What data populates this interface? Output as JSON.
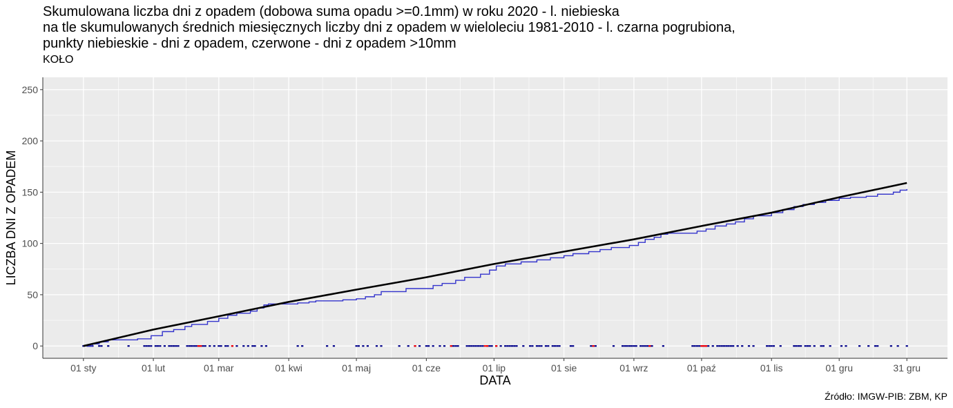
{
  "title_lines": [
    "Skumulowana liczba dni z opadem (dobowa suma opadu >=0.1mm) w roku 2020 - l. niebieska",
    "na tle skumulowanych średnich miesięcznych liczby dni z opadem w wieloleciu 1981-2010 - l. czarna pogrubiona,",
    "punkty niebieskie - dni z opadem, czerwone - dni z opadem >10mm"
  ],
  "subtitle": "KOŁO",
  "caption": "Źródło: IMGW-PIB: ZBM, KP",
  "colors": {
    "panel": "#ebebeb",
    "grid": "#ffffff",
    "series_2020": "#3333cc",
    "series_normal": "#000000",
    "points_rain": "#00008b",
    "points_heavy": "#ff0000"
  },
  "chart_data": {
    "type": "line",
    "xlabel": "DATA",
    "ylabel": "LICZBA DNI Z OPADEM",
    "xlim": [
      "2019-12-14",
      "2021-01-18"
    ],
    "ylim": [
      -12,
      262
    ],
    "grid": true,
    "x_ticks": [
      {
        "date": "2020-01-01",
        "label": "01 sty"
      },
      {
        "date": "2020-02-01",
        "label": "01 lut"
      },
      {
        "date": "2020-03-01",
        "label": "01 mar"
      },
      {
        "date": "2020-04-01",
        "label": "01 kwi"
      },
      {
        "date": "2020-05-01",
        "label": "01 maj"
      },
      {
        "date": "2020-06-01",
        "label": "01 cze"
      },
      {
        "date": "2020-07-01",
        "label": "01 lip"
      },
      {
        "date": "2020-08-01",
        "label": "01 sie"
      },
      {
        "date": "2020-09-01",
        "label": "01 wrz"
      },
      {
        "date": "2020-10-01",
        "label": "01 paź"
      },
      {
        "date": "2020-11-01",
        "label": "01 lis"
      },
      {
        "date": "2020-12-01",
        "label": "01 gru"
      },
      {
        "date": "2020-12-31",
        "label": "31 gru"
      }
    ],
    "y_ticks": [
      {
        "value": 0,
        "label": "0"
      },
      {
        "value": 50,
        "label": "50"
      },
      {
        "value": 100,
        "label": "100"
      },
      {
        "value": 150,
        "label": "150"
      },
      {
        "value": 200,
        "label": "200"
      },
      {
        "value": 250,
        "label": "250"
      }
    ],
    "series": [
      {
        "key": "normal_1981_2010",
        "style": "line-thick",
        "points": [
          [
            "2020-01-01",
            0
          ],
          [
            "2020-02-01",
            16
          ],
          [
            "2020-03-01",
            29
          ],
          [
            "2020-04-01",
            43
          ],
          [
            "2020-05-01",
            55
          ],
          [
            "2020-06-01",
            67
          ],
          [
            "2020-07-01",
            80
          ],
          [
            "2020-08-01",
            92
          ],
          [
            "2020-09-01",
            104
          ],
          [
            "2020-10-01",
            117
          ],
          [
            "2020-11-01",
            130
          ],
          [
            "2020-12-01",
            145
          ],
          [
            "2020-12-31",
            159
          ]
        ]
      },
      {
        "key": "cumulative_2020",
        "style": "step",
        "points": [
          [
            "2020-01-01",
            0
          ],
          [
            "2020-01-05",
            2
          ],
          [
            "2020-01-08",
            4
          ],
          [
            "2020-01-12",
            6
          ],
          [
            "2020-01-25",
            7
          ],
          [
            "2020-01-31",
            10
          ],
          [
            "2020-02-05",
            14
          ],
          [
            "2020-02-10",
            16
          ],
          [
            "2020-02-15",
            19
          ],
          [
            "2020-02-18",
            21
          ],
          [
            "2020-02-25",
            24
          ],
          [
            "2020-03-01",
            27
          ],
          [
            "2020-03-05",
            30
          ],
          [
            "2020-03-09",
            32
          ],
          [
            "2020-03-15",
            34
          ],
          [
            "2020-03-18",
            37
          ],
          [
            "2020-03-21",
            40
          ],
          [
            "2020-03-23",
            41
          ],
          [
            "2020-04-05",
            42
          ],
          [
            "2020-04-10",
            43
          ],
          [
            "2020-04-13",
            44
          ],
          [
            "2020-04-25",
            45
          ],
          [
            "2020-05-01",
            46
          ],
          [
            "2020-05-05",
            48
          ],
          [
            "2020-05-09",
            50
          ],
          [
            "2020-05-12",
            53
          ],
          [
            "2020-05-23",
            56
          ],
          [
            "2020-06-04",
            59
          ],
          [
            "2020-06-08",
            61
          ],
          [
            "2020-06-14",
            64
          ],
          [
            "2020-06-18",
            67
          ],
          [
            "2020-06-25",
            70
          ],
          [
            "2020-06-29",
            74
          ],
          [
            "2020-07-02",
            78
          ],
          [
            "2020-07-06",
            80
          ],
          [
            "2020-07-13",
            82
          ],
          [
            "2020-07-20",
            84
          ],
          [
            "2020-07-26",
            86
          ],
          [
            "2020-08-01",
            88
          ],
          [
            "2020-08-05",
            90
          ],
          [
            "2020-08-12",
            92
          ],
          [
            "2020-08-17",
            94
          ],
          [
            "2020-08-22",
            96
          ],
          [
            "2020-08-30",
            98
          ],
          [
            "2020-09-03",
            101
          ],
          [
            "2020-09-06",
            104
          ],
          [
            "2020-09-10",
            106
          ],
          [
            "2020-09-13",
            109
          ],
          [
            "2020-09-16",
            110
          ],
          [
            "2020-09-29",
            112
          ],
          [
            "2020-10-03",
            114
          ],
          [
            "2020-10-07",
            117
          ],
          [
            "2020-10-12",
            119
          ],
          [
            "2020-10-16",
            121
          ],
          [
            "2020-10-20",
            124
          ],
          [
            "2020-10-24",
            127
          ],
          [
            "2020-11-01",
            130
          ],
          [
            "2020-11-06",
            133
          ],
          [
            "2020-11-11",
            136
          ],
          [
            "2020-11-15",
            138
          ],
          [
            "2020-11-20",
            140
          ],
          [
            "2020-11-25",
            142
          ],
          [
            "2020-12-01",
            144
          ],
          [
            "2020-12-06",
            145
          ],
          [
            "2020-12-13",
            146
          ],
          [
            "2020-12-18",
            148
          ],
          [
            "2020-12-25",
            150
          ],
          [
            "2020-12-28",
            152
          ],
          [
            "2020-12-31",
            153
          ]
        ]
      }
    ],
    "rain_days": [
      "2020-01-01",
      "2020-01-03",
      "2020-01-04",
      "2020-01-05",
      "2020-01-08",
      "2020-01-09",
      "2020-01-12",
      "2020-01-21",
      "2020-01-28",
      "2020-01-29",
      "2020-01-30",
      "2020-01-31",
      "2020-02-02",
      "2020-02-03",
      "2020-02-04",
      "2020-02-06",
      "2020-02-08",
      "2020-02-09",
      "2020-02-10",
      "2020-02-11",
      "2020-02-12",
      "2020-02-16",
      "2020-02-17",
      "2020-02-18",
      "2020-02-19",
      "2020-02-20",
      "2020-02-21",
      "2020-02-22",
      "2020-02-23",
      "2020-02-24",
      "2020-02-26",
      "2020-02-28",
      "2020-03-01",
      "2020-03-02",
      "2020-03-04",
      "2020-03-05",
      "2020-03-07",
      "2020-03-09",
      "2020-03-12",
      "2020-03-14",
      "2020-03-16",
      "2020-03-17",
      "2020-03-20",
      "2020-03-22",
      "2020-04-05",
      "2020-04-07",
      "2020-04-18",
      "2020-04-21",
      "2020-05-01",
      "2020-05-02",
      "2020-05-04",
      "2020-05-06",
      "2020-05-10",
      "2020-05-12",
      "2020-05-20",
      "2020-05-24",
      "2020-05-27",
      "2020-05-29",
      "2020-06-01",
      "2020-06-02",
      "2020-06-04",
      "2020-06-07",
      "2020-06-09",
      "2020-06-12",
      "2020-06-13",
      "2020-06-14",
      "2020-06-15",
      "2020-06-19",
      "2020-06-20",
      "2020-06-21",
      "2020-06-22",
      "2020-06-23",
      "2020-06-24",
      "2020-06-25",
      "2020-06-26",
      "2020-06-28",
      "2020-06-29",
      "2020-06-30",
      "2020-07-02",
      "2020-07-04",
      "2020-07-06",
      "2020-07-07",
      "2020-07-08",
      "2020-07-09",
      "2020-07-10",
      "2020-07-11",
      "2020-07-14",
      "2020-07-17",
      "2020-07-18",
      "2020-07-20",
      "2020-07-21",
      "2020-07-22",
      "2020-07-24",
      "2020-07-25",
      "2020-07-27",
      "2020-07-28",
      "2020-07-29",
      "2020-07-30",
      "2020-08-04",
      "2020-08-05",
      "2020-08-13",
      "2020-08-14",
      "2020-08-15",
      "2020-08-23",
      "2020-08-27",
      "2020-08-28",
      "2020-08-29",
      "2020-08-30",
      "2020-08-31",
      "2020-09-01",
      "2020-09-02",
      "2020-09-04",
      "2020-09-05",
      "2020-09-06",
      "2020-09-07",
      "2020-09-08",
      "2020-09-09",
      "2020-09-14",
      "2020-09-27",
      "2020-09-28",
      "2020-09-29",
      "2020-09-30",
      "2020-10-01",
      "2020-10-02",
      "2020-10-03",
      "2020-10-04",
      "2020-10-06",
      "2020-10-08",
      "2020-10-09",
      "2020-10-10",
      "2020-10-11",
      "2020-10-12",
      "2020-10-13",
      "2020-10-14",
      "2020-10-15",
      "2020-10-17",
      "2020-10-19",
      "2020-10-22",
      "2020-10-24",
      "2020-10-30",
      "2020-10-31",
      "2020-11-01",
      "2020-11-02",
      "2020-11-05",
      "2020-11-11",
      "2020-11-12",
      "2020-11-13",
      "2020-11-14",
      "2020-11-16",
      "2020-11-17",
      "2020-11-18",
      "2020-11-20",
      "2020-11-23",
      "2020-11-24",
      "2020-11-27",
      "2020-12-02",
      "2020-12-04",
      "2020-12-10",
      "2020-12-14",
      "2020-12-17",
      "2020-12-18",
      "2020-12-24",
      "2020-12-27",
      "2020-12-31"
    ],
    "heavy_rain_days": [
      "2020-02-21",
      "2020-02-22",
      "2020-03-07",
      "2020-05-27",
      "2020-06-12",
      "2020-06-27",
      "2020-06-28",
      "2020-07-02",
      "2020-08-14",
      "2020-09-08",
      "2020-10-01",
      "2020-10-02",
      "2020-10-03"
    ]
  }
}
